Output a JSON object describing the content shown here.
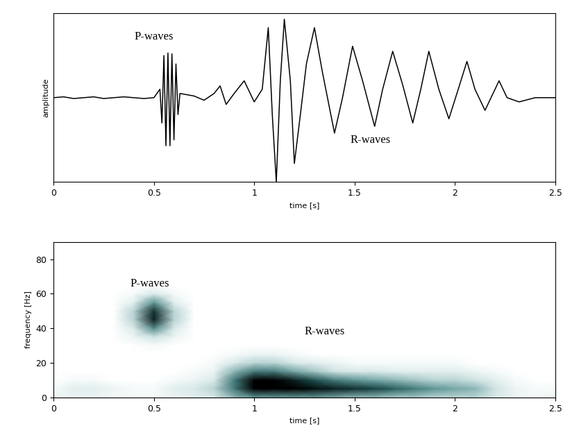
{
  "chart_data": [
    {
      "type": "line",
      "y_label": "amplitude",
      "x_label": "time [s]",
      "xlim": [
        0,
        2.5
      ],
      "xticks": [
        0,
        0.5,
        1,
        1.5,
        2,
        2.5
      ],
      "ylim": [
        -1,
        1
      ],
      "yticks": [],
      "tick_labels": "x",
      "grid": false,
      "color": "#000000",
      "annotations": [
        {
          "text": "P-waves",
          "x": 0.5,
          "y": 0.72
        },
        {
          "text": "R-waves",
          "x": 1.58,
          "y": -0.5
        }
      ],
      "x": [
        0.0,
        0.05,
        0.1,
        0.15,
        0.2,
        0.25,
        0.3,
        0.35,
        0.4,
        0.45,
        0.5,
        0.53,
        0.54,
        0.55,
        0.56,
        0.57,
        0.58,
        0.59,
        0.6,
        0.61,
        0.62,
        0.63,
        0.7,
        0.75,
        0.8,
        0.83,
        0.86,
        0.9,
        0.95,
        1.0,
        1.04,
        1.07,
        1.09,
        1.11,
        1.13,
        1.15,
        1.18,
        1.2,
        1.23,
        1.26,
        1.3,
        1.34,
        1.4,
        1.44,
        1.49,
        1.54,
        1.6,
        1.64,
        1.69,
        1.74,
        1.79,
        1.83,
        1.87,
        1.92,
        1.97,
        2.01,
        2.06,
        2.1,
        2.15,
        2.18,
        2.22,
        2.26,
        2.32,
        2.4,
        2.5
      ],
      "values": [
        0.0,
        0.01,
        -0.01,
        0.0,
        0.01,
        -0.01,
        0.0,
        0.01,
        0.0,
        -0.01,
        0.0,
        0.1,
        -0.3,
        0.5,
        -0.57,
        0.53,
        -0.57,
        0.52,
        -0.5,
        0.4,
        -0.2,
        0.05,
        0.02,
        -0.03,
        0.05,
        0.14,
        -0.08,
        0.05,
        0.2,
        -0.05,
        0.1,
        0.83,
        -0.2,
        -1.0,
        0.2,
        0.93,
        0.2,
        -0.78,
        -0.2,
        0.4,
        0.83,
        0.3,
        -0.42,
        0.0,
        0.61,
        0.2,
        -0.34,
        0.1,
        0.55,
        0.15,
        -0.3,
        0.1,
        0.55,
        0.1,
        -0.25,
        0.05,
        0.43,
        0.1,
        -0.15,
        0.0,
        0.2,
        0.0,
        -0.05,
        0.0,
        0.0
      ]
    },
    {
      "type": "heatmap",
      "y_label": "frequency [Hz]",
      "x_label": "time [s]",
      "xlim": [
        0,
        2.5
      ],
      "xticks": [
        0,
        0.5,
        1,
        1.5,
        2,
        2.5
      ],
      "ylim": [
        0,
        90
      ],
      "yticks": [
        0,
        20,
        40,
        60,
        80
      ],
      "grid": false,
      "annotations": [
        {
          "text": "P-waves",
          "x": 0.48,
          "y": 66
        },
        {
          "text": "R-waves",
          "x": 1.35,
          "y": 38
        }
      ],
      "color_range": [
        0,
        1
      ],
      "x": [
        0.0,
        0.1,
        0.2,
        0.3,
        0.4,
        0.5,
        0.6,
        0.7,
        0.8,
        0.9,
        1.0,
        1.1,
        1.2,
        1.3,
        1.4,
        1.5,
        1.6,
        1.7,
        1.8,
        1.9,
        2.0,
        2.1,
        2.2,
        2.3,
        2.4,
        2.5
      ],
      "y": [
        0,
        5,
        10,
        15,
        20,
        25,
        30,
        35,
        40,
        45,
        50,
        55,
        60,
        65,
        70,
        75,
        80,
        85
      ],
      "cells": [
        [
          0.1,
          0.1,
          0.1,
          0.05,
          0.05,
          0.05,
          0.1,
          0.15,
          0.2,
          0.4,
          0.5,
          0.5,
          0.5,
          0.5,
          0.45,
          0.4,
          0.4,
          0.35,
          0.35,
          0.3,
          0.3,
          0.3,
          0.2,
          0.1,
          0.05,
          0.1
        ],
        [
          0.05,
          0.15,
          0.15,
          0.1,
          0.05,
          0.05,
          0.15,
          0.2,
          0.3,
          0.6,
          1,
          1,
          1,
          0.95,
          0.9,
          0.85,
          0.8,
          0.7,
          0.6,
          0.5,
          0.45,
          0.4,
          0.25,
          0.1,
          0.05,
          0.05
        ],
        [
          0,
          0.05,
          0.05,
          0,
          0,
          0,
          0.05,
          0.1,
          0.2,
          0.6,
          1,
          1,
          0.9,
          0.75,
          0.6,
          0.5,
          0.45,
          0.4,
          0.35,
          0.3,
          0.3,
          0.25,
          0.15,
          0.05,
          0,
          0
        ],
        [
          0,
          0,
          0,
          0,
          0,
          0,
          0,
          0.05,
          0.1,
          0.4,
          0.6,
          0.6,
          0.45,
          0.35,
          0.25,
          0.2,
          0.2,
          0.15,
          0.15,
          0.15,
          0.15,
          0.1,
          0.05,
          0,
          0,
          0
        ],
        [
          0,
          0,
          0,
          0,
          0,
          0,
          0,
          0,
          0.05,
          0.2,
          0.3,
          0.3,
          0.2,
          0.15,
          0.1,
          0.05,
          0.05,
          0.05,
          0.05,
          0.05,
          0.05,
          0,
          0,
          0,
          0,
          0
        ],
        [
          0,
          0,
          0,
          0,
          0,
          0,
          0,
          0,
          0,
          0.05,
          0.1,
          0.1,
          0.05,
          0,
          0,
          0,
          0,
          0,
          0,
          0,
          0,
          0,
          0,
          0,
          0,
          0
        ],
        [
          0,
          0,
          0,
          0,
          0,
          0.05,
          0,
          0,
          0,
          0,
          0,
          0,
          0,
          0,
          0,
          0,
          0,
          0,
          0,
          0,
          0,
          0,
          0,
          0,
          0,
          0
        ],
        [
          0,
          0,
          0,
          0,
          0.1,
          0.25,
          0.1,
          0,
          0,
          0,
          0,
          0,
          0,
          0,
          0,
          0,
          0,
          0,
          0,
          0,
          0,
          0,
          0,
          0,
          0,
          0
        ],
        [
          0,
          0,
          0,
          0,
          0.2,
          0.55,
          0.2,
          0,
          0,
          0,
          0,
          0,
          0,
          0,
          0,
          0,
          0,
          0,
          0,
          0,
          0,
          0,
          0,
          0,
          0,
          0
        ],
        [
          0,
          0,
          0,
          0,
          0.3,
          0.9,
          0.3,
          0,
          0,
          0,
          0,
          0,
          0,
          0,
          0,
          0,
          0,
          0,
          0,
          0,
          0,
          0,
          0,
          0,
          0,
          0
        ],
        [
          0,
          0,
          0,
          0,
          0.3,
          0.85,
          0.3,
          0,
          0,
          0,
          0,
          0,
          0,
          0,
          0,
          0,
          0,
          0,
          0,
          0,
          0,
          0,
          0,
          0,
          0,
          0
        ],
        [
          0,
          0,
          0,
          0,
          0.15,
          0.5,
          0.15,
          0,
          0,
          0,
          0,
          0,
          0,
          0,
          0,
          0,
          0,
          0,
          0,
          0,
          0,
          0,
          0,
          0,
          0,
          0
        ],
        [
          0,
          0,
          0,
          0,
          0.05,
          0.2,
          0.05,
          0,
          0,
          0,
          0,
          0,
          0,
          0,
          0,
          0,
          0,
          0,
          0,
          0,
          0,
          0,
          0,
          0,
          0,
          0
        ],
        [
          0,
          0,
          0,
          0,
          0,
          0,
          0,
          0,
          0,
          0,
          0,
          0,
          0,
          0,
          0,
          0,
          0,
          0,
          0,
          0,
          0,
          0,
          0,
          0,
          0,
          0
        ],
        [
          0,
          0,
          0,
          0,
          0,
          0,
          0,
          0,
          0,
          0,
          0,
          0,
          0,
          0,
          0,
          0,
          0,
          0,
          0,
          0,
          0,
          0,
          0,
          0,
          0,
          0
        ],
        [
          0,
          0,
          0,
          0,
          0,
          0,
          0,
          0,
          0,
          0,
          0,
          0,
          0,
          0,
          0,
          0,
          0,
          0,
          0,
          0,
          0,
          0,
          0,
          0,
          0,
          0
        ],
        [
          0,
          0,
          0,
          0,
          0,
          0,
          0,
          0,
          0,
          0,
          0,
          0,
          0,
          0,
          0,
          0,
          0,
          0,
          0,
          0,
          0,
          0,
          0,
          0,
          0,
          0
        ],
        [
          0,
          0,
          0,
          0,
          0,
          0,
          0,
          0,
          0,
          0,
          0,
          0,
          0,
          0,
          0,
          0,
          0,
          0,
          0,
          0,
          0,
          0,
          0,
          0,
          0,
          0
        ]
      ]
    }
  ]
}
